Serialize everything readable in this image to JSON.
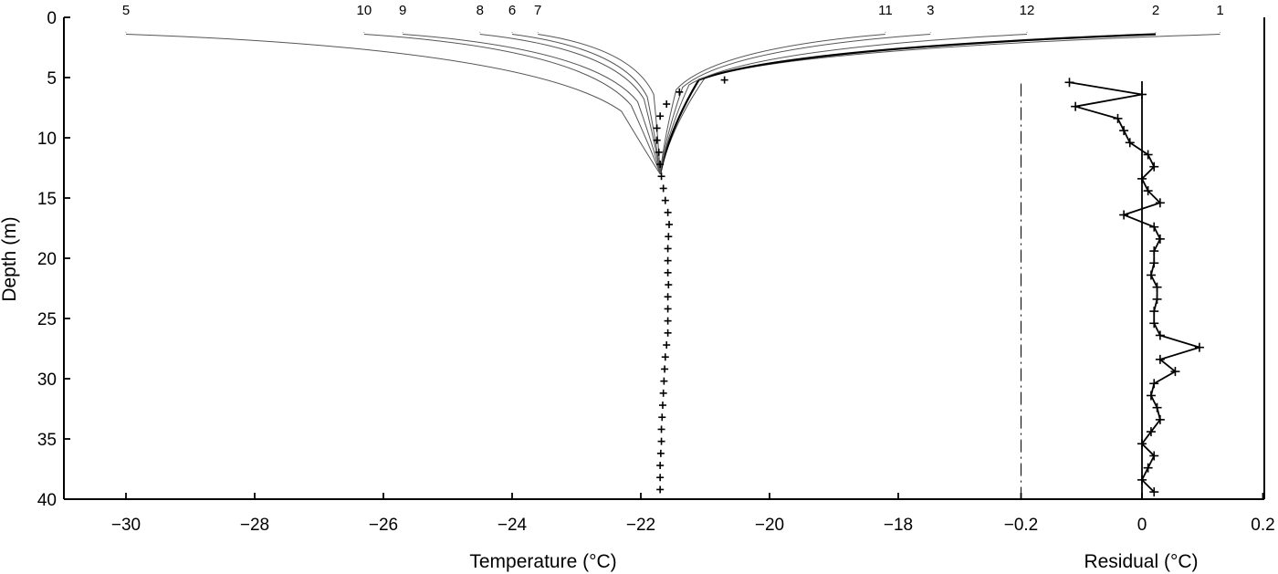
{
  "chart_data": [
    {
      "type": "line",
      "xlabel": "Temperature (°C)",
      "ylabel": "Depth (m)",
      "xlim": [
        -31,
        -12.2
      ],
      "ylim": [
        40,
        0
      ],
      "xticks": [
        -30,
        -28,
        -26,
        -24,
        -22,
        -20,
        -18
      ],
      "xtick_labels": [
        "−30",
        "−28",
        "−26",
        "−24",
        "−22",
        "−20",
        "−18"
      ],
      "yticks": [
        0,
        5,
        10,
        15,
        20,
        25,
        30,
        35,
        40
      ],
      "ytick_labels": [
        "0",
        "5",
        "10",
        "15",
        "20",
        "25",
        "30",
        "35",
        "40"
      ],
      "series": [
        {
          "name": "1",
          "surface_temp": -13.0,
          "knee_depth": 5.0,
          "knee_temp": -21.0
        },
        {
          "name": "2",
          "surface_temp": -14.0,
          "knee_depth": 5.2,
          "knee_temp": -21.1
        },
        {
          "name": "12",
          "surface_temp": -16.0,
          "knee_depth": 5.6,
          "knee_temp": -21.25
        },
        {
          "name": "3",
          "surface_temp": -17.5,
          "knee_depth": 5.8,
          "knee_temp": -21.35
        },
        {
          "name": "11",
          "surface_temp": -18.2,
          "knee_depth": 6.0,
          "knee_temp": -21.45
        },
        {
          "name": "7",
          "surface_temp": -23.6,
          "knee_depth": 6.4,
          "knee_temp": -21.8
        },
        {
          "name": "6",
          "surface_temp": -24.0,
          "knee_depth": 6.6,
          "knee_temp": -21.9
        },
        {
          "name": "8",
          "surface_temp": -24.5,
          "knee_depth": 6.8,
          "knee_temp": -21.95
        },
        {
          "name": "9",
          "surface_temp": -25.7,
          "knee_depth": 7.0,
          "knee_temp": -22.05
        },
        {
          "name": "10",
          "surface_temp": -26.3,
          "knee_depth": 7.3,
          "knee_temp": -22.15
        },
        {
          "name": "5",
          "surface_temp": -30.0,
          "knee_depth": 7.8,
          "knee_temp": -22.3
        }
      ],
      "observations": {
        "depth": [
          5.2,
          6.2,
          7.2,
          8.2,
          9.2,
          10.2,
          11.2,
          12.2,
          13.2,
          14.2,
          15.2,
          16.2,
          17.2,
          18.2,
          19.2,
          20.2,
          21.2,
          22.2,
          23.2,
          24.2,
          25.2,
          26.2,
          27.2,
          28.2,
          29.2,
          30.2,
          31.2,
          32.2,
          33.2,
          34.2,
          35.2,
          36.2,
          37.2,
          38.2,
          39.2
        ],
        "temp": [
          -20.7,
          -21.4,
          -21.6,
          -21.7,
          -21.75,
          -21.75,
          -21.72,
          -21.7,
          -21.68,
          -21.65,
          -21.62,
          -21.58,
          -21.56,
          -21.57,
          -21.58,
          -21.58,
          -21.58,
          -21.57,
          -21.58,
          -21.58,
          -21.58,
          -21.58,
          -21.6,
          -21.62,
          -21.63,
          -21.64,
          -21.65,
          -21.66,
          -21.67,
          -21.68,
          -21.68,
          -21.69,
          -21.7,
          -21.7,
          -21.7
        ]
      }
    },
    {
      "type": "line",
      "xlabel": "Residual (°C)",
      "xlim": [
        -0.2,
        0.2
      ],
      "xticks": [
        -0.2,
        0,
        0.2
      ],
      "xtick_labels": [
        "−0.2",
        "0",
        "0.2"
      ],
      "ylim": [
        40,
        0
      ],
      "series": [
        {
          "depth": [
            5.4,
            6.4,
            7.4,
            8.4,
            9.4,
            10.4,
            11.4,
            12.4,
            13.4,
            14.4,
            15.4,
            16.4,
            17.4,
            18.4,
            19.4,
            20.4,
            21.4,
            22.4,
            23.4,
            24.4,
            25.4,
            26.4,
            27.4,
            28.4,
            29.4,
            30.4,
            31.4,
            32.4,
            33.4,
            34.4,
            35.4,
            36.4,
            37.4,
            38.4,
            39.4
          ],
          "residual": [
            -0.12,
            0.0,
            -0.11,
            -0.04,
            -0.03,
            -0.02,
            0.01,
            0.02,
            0.0,
            0.01,
            0.03,
            -0.03,
            0.02,
            0.03,
            0.02,
            0.02,
            0.015,
            0.025,
            0.025,
            0.02,
            0.02,
            0.03,
            0.095,
            0.03,
            0.055,
            0.02,
            0.015,
            0.025,
            0.03,
            0.015,
            0.0,
            0.02,
            0.01,
            0.0,
            0.02
          ]
        }
      ]
    }
  ]
}
